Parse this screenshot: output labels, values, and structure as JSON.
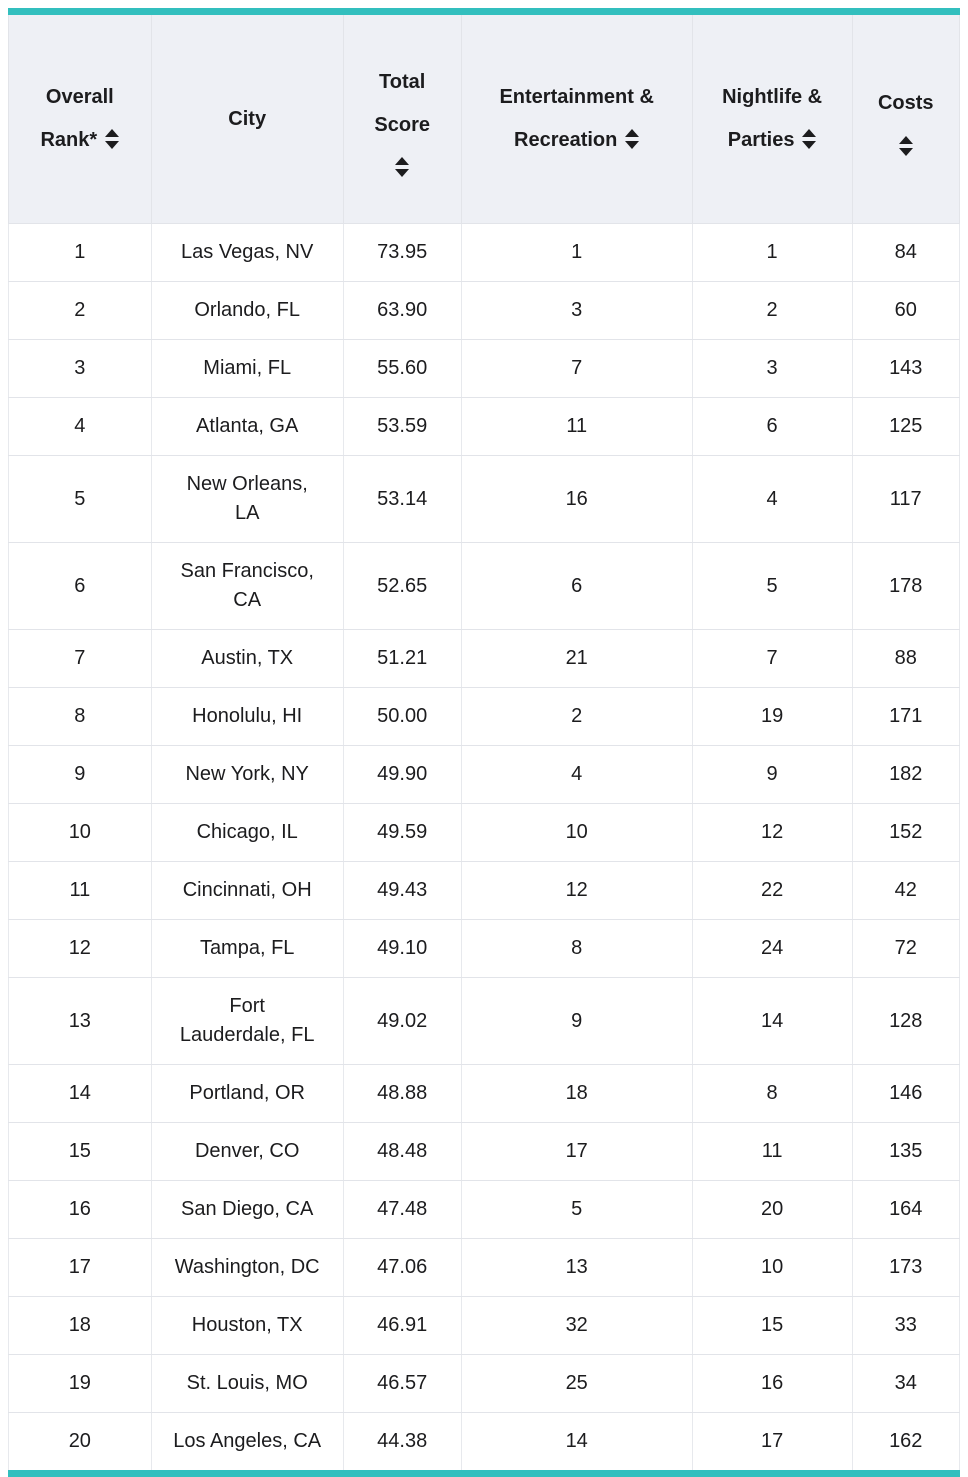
{
  "accent_color": "#32bfbe",
  "header_background": "#eef0f5",
  "icons": {
    "sort": "sort-up-down-triangles-icon"
  },
  "table": {
    "columns": [
      {
        "name": "overall-rank",
        "lines": [
          "Overall",
          "Rank*"
        ],
        "sortable": true,
        "icon_on_own_line": false
      },
      {
        "name": "city",
        "lines": [
          "City"
        ],
        "sortable": false,
        "icon_on_own_line": false
      },
      {
        "name": "total-score",
        "lines": [
          "Total",
          "Score"
        ],
        "sortable": true,
        "icon_on_own_line": true
      },
      {
        "name": "entertainment-recreation",
        "lines": [
          "Entertainment &",
          "Recreation"
        ],
        "sortable": true,
        "icon_on_own_line": false
      },
      {
        "name": "nightlife-parties",
        "lines": [
          "Nightlife &",
          "Parties"
        ],
        "sortable": true,
        "icon_on_own_line": false
      },
      {
        "name": "costs",
        "lines": [
          "Costs"
        ],
        "sortable": true,
        "icon_on_own_line": true
      }
    ],
    "rows": [
      {
        "overall_rank": "1",
        "city": "Las Vegas, NV",
        "total_score": "73.95",
        "entertainment_recreation": "1",
        "nightlife_parties": "1",
        "costs": "84"
      },
      {
        "overall_rank": "2",
        "city": "Orlando, FL",
        "total_score": "63.90",
        "entertainment_recreation": "3",
        "nightlife_parties": "2",
        "costs": "60"
      },
      {
        "overall_rank": "3",
        "city": "Miami, FL",
        "total_score": "55.60",
        "entertainment_recreation": "7",
        "nightlife_parties": "3",
        "costs": "143"
      },
      {
        "overall_rank": "4",
        "city": "Atlanta, GA",
        "total_score": "53.59",
        "entertainment_recreation": "11",
        "nightlife_parties": "6",
        "costs": "125"
      },
      {
        "overall_rank": "5",
        "city": "New Orleans,\nLA",
        "total_score": "53.14",
        "entertainment_recreation": "16",
        "nightlife_parties": "4",
        "costs": "117"
      },
      {
        "overall_rank": "6",
        "city": "San Francisco,\nCA",
        "total_score": "52.65",
        "entertainment_recreation": "6",
        "nightlife_parties": "5",
        "costs": "178"
      },
      {
        "overall_rank": "7",
        "city": "Austin, TX",
        "total_score": "51.21",
        "entertainment_recreation": "21",
        "nightlife_parties": "7",
        "costs": "88"
      },
      {
        "overall_rank": "8",
        "city": "Honolulu, HI",
        "total_score": "50.00",
        "entertainment_recreation": "2",
        "nightlife_parties": "19",
        "costs": "171"
      },
      {
        "overall_rank": "9",
        "city": "New York, NY",
        "total_score": "49.90",
        "entertainment_recreation": "4",
        "nightlife_parties": "9",
        "costs": "182"
      },
      {
        "overall_rank": "10",
        "city": "Chicago, IL",
        "total_score": "49.59",
        "entertainment_recreation": "10",
        "nightlife_parties": "12",
        "costs": "152"
      },
      {
        "overall_rank": "11",
        "city": "Cincinnati, OH",
        "total_score": "49.43",
        "entertainment_recreation": "12",
        "nightlife_parties": "22",
        "costs": "42"
      },
      {
        "overall_rank": "12",
        "city": "Tampa, FL",
        "total_score": "49.10",
        "entertainment_recreation": "8",
        "nightlife_parties": "24",
        "costs": "72"
      },
      {
        "overall_rank": "13",
        "city": "Fort\nLauderdale, FL",
        "total_score": "49.02",
        "entertainment_recreation": "9",
        "nightlife_parties": "14",
        "costs": "128"
      },
      {
        "overall_rank": "14",
        "city": "Portland, OR",
        "total_score": "48.88",
        "entertainment_recreation": "18",
        "nightlife_parties": "8",
        "costs": "146"
      },
      {
        "overall_rank": "15",
        "city": "Denver, CO",
        "total_score": "48.48",
        "entertainment_recreation": "17",
        "nightlife_parties": "11",
        "costs": "135"
      },
      {
        "overall_rank": "16",
        "city": "San Diego, CA",
        "total_score": "47.48",
        "entertainment_recreation": "5",
        "nightlife_parties": "20",
        "costs": "164"
      },
      {
        "overall_rank": "17",
        "city": "Washington, DC",
        "total_score": "47.06",
        "entertainment_recreation": "13",
        "nightlife_parties": "10",
        "costs": "173"
      },
      {
        "overall_rank": "18",
        "city": "Houston, TX",
        "total_score": "46.91",
        "entertainment_recreation": "32",
        "nightlife_parties": "15",
        "costs": "33"
      },
      {
        "overall_rank": "19",
        "city": "St. Louis, MO",
        "total_score": "46.57",
        "entertainment_recreation": "25",
        "nightlife_parties": "16",
        "costs": "34"
      },
      {
        "overall_rank": "20",
        "city": "Los Angeles, CA",
        "total_score": "44.38",
        "entertainment_recreation": "14",
        "nightlife_parties": "17",
        "costs": "162"
      }
    ]
  }
}
